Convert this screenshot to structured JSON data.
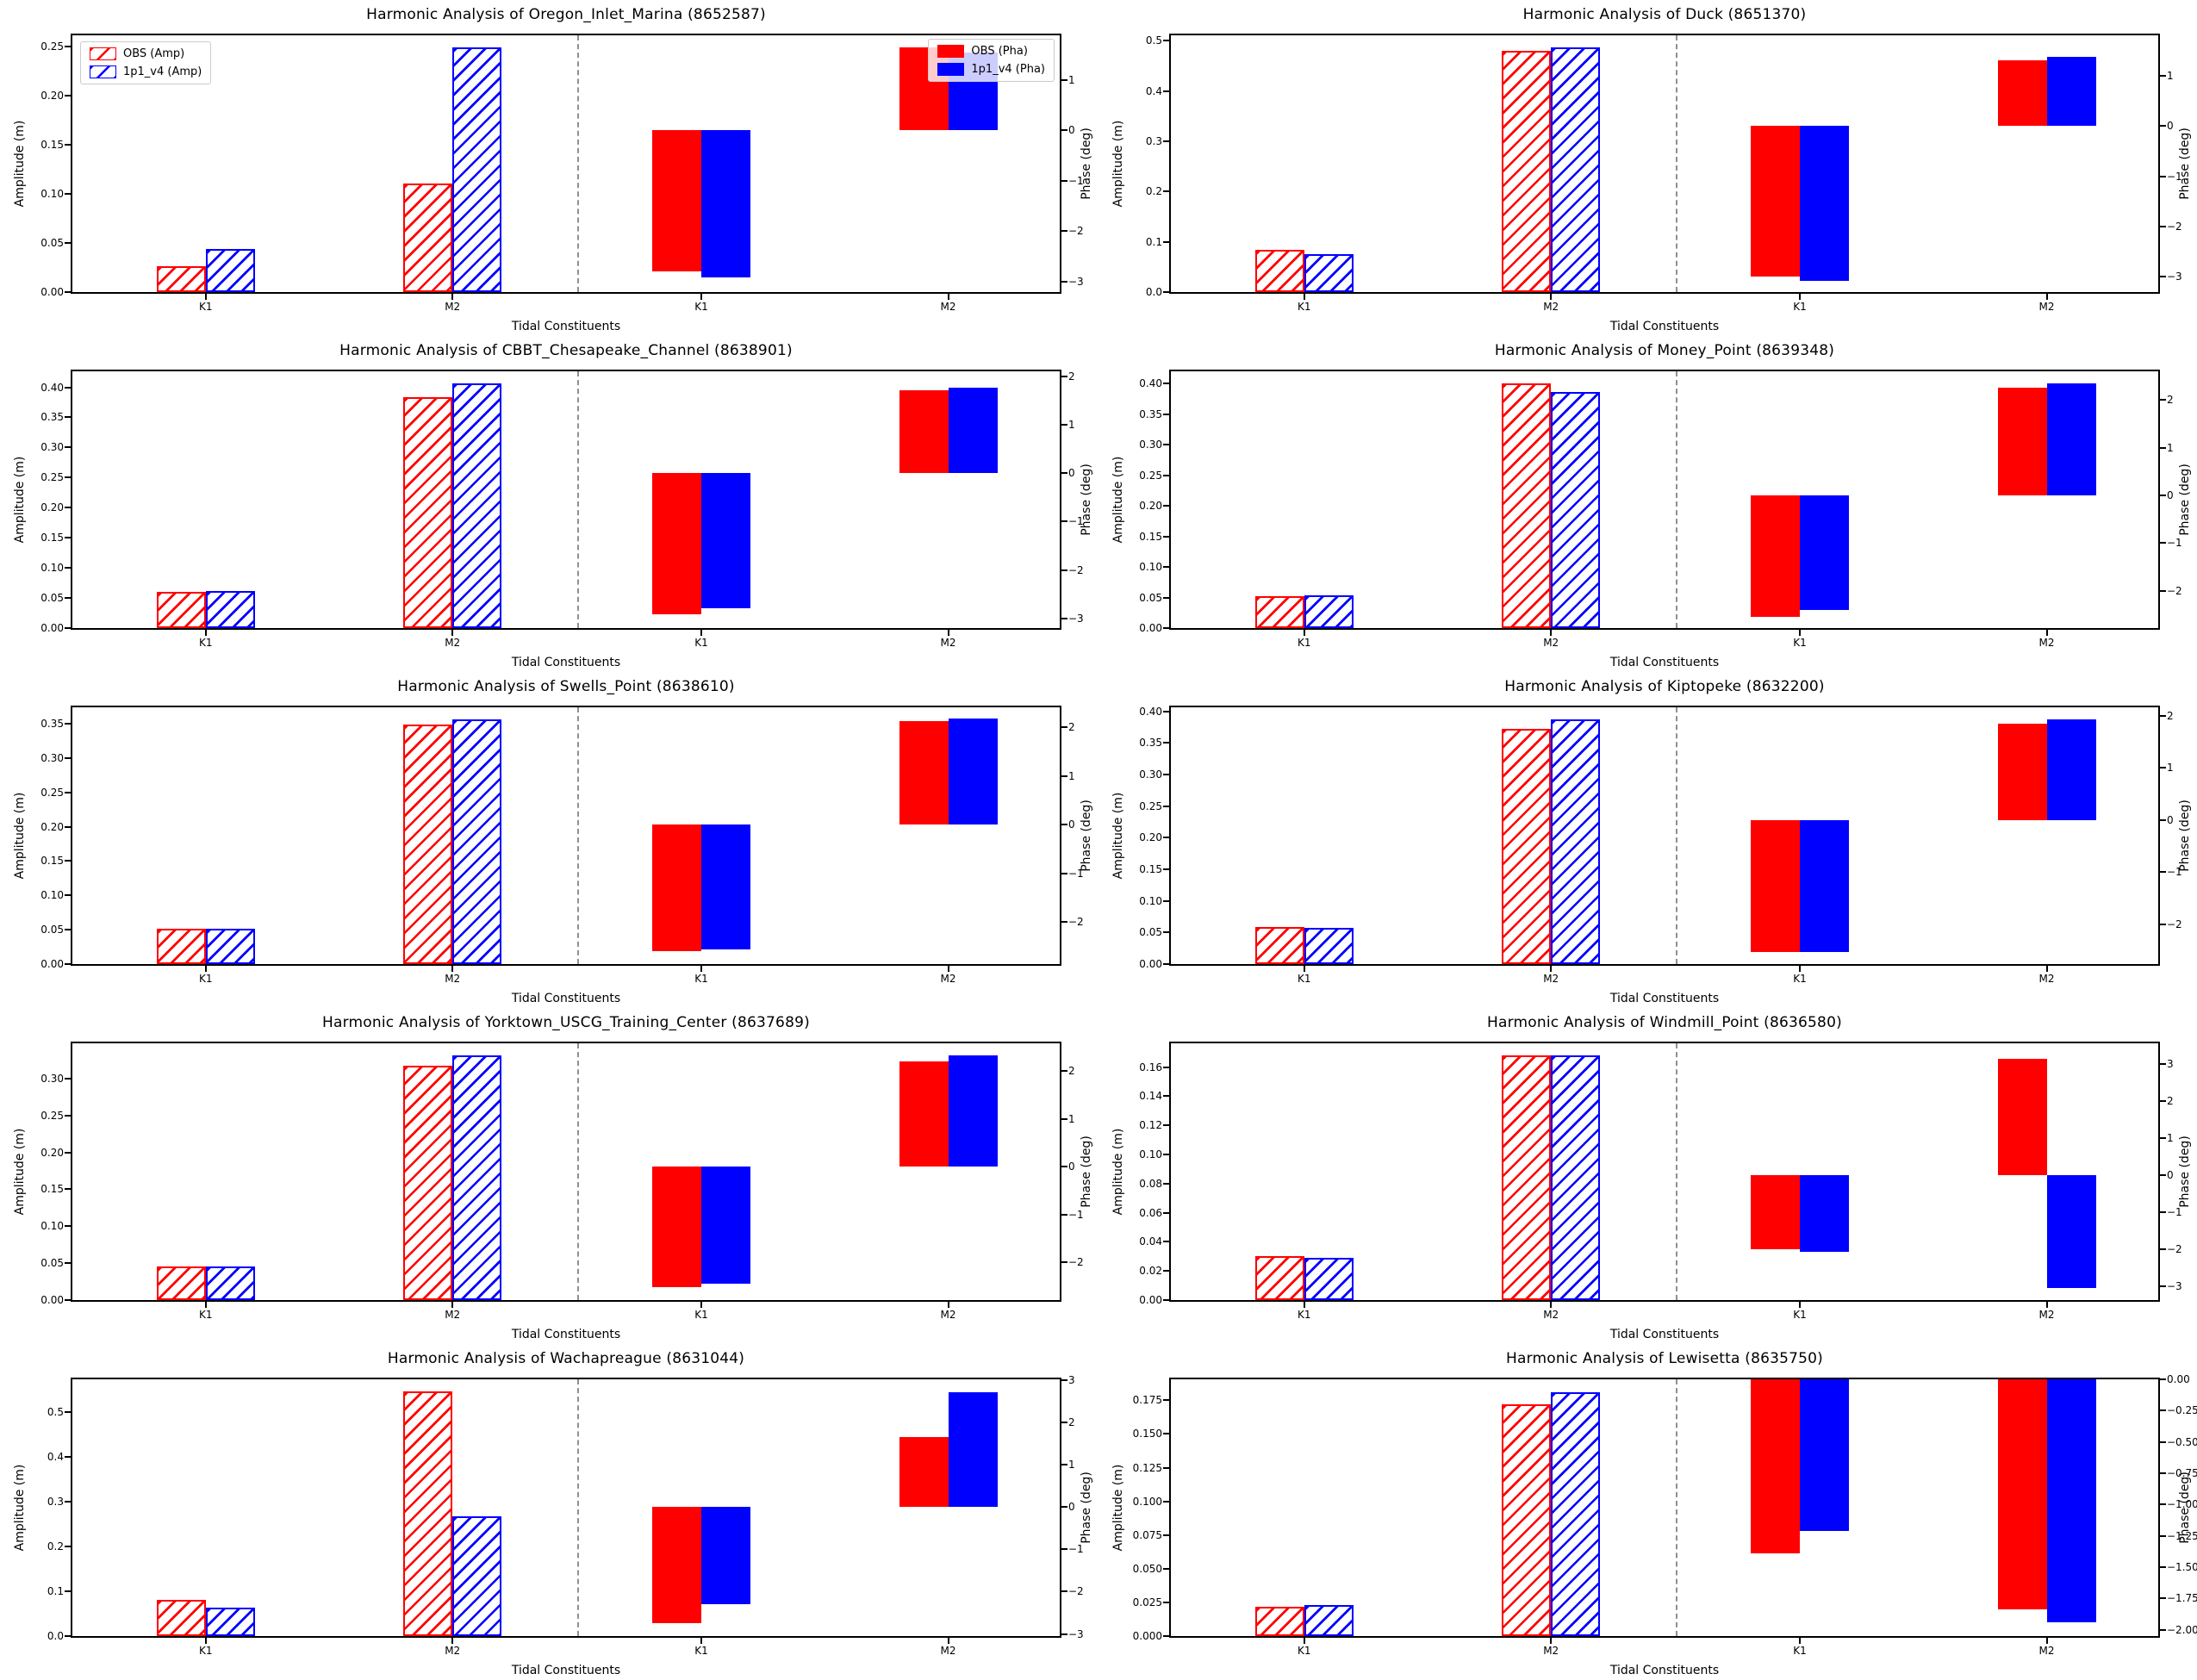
{
  "colors": {
    "obs": "#ff0000",
    "model": "#0000ff",
    "separator": "#8f8f8f",
    "axis": "#000000"
  },
  "legend": {
    "amp_labels": [
      "OBS (Amp)",
      "1p1_v4 (Amp)"
    ],
    "pha_labels": [
      "OBS (Pha)",
      "1p1_v4 (Pha)"
    ]
  },
  "chart_data": [
    {
      "type": "grouped_bar",
      "station": "Oregon_Inlet_Marina",
      "station_id": "8652587",
      "title": "Harmonic Analysis of Oregon_Inlet_Marina (8652587)",
      "xlabel": "Tidal Constituents",
      "ylabel_left": "Amplitude (m)",
      "ylabel_right": "Phase (deg)",
      "has_legend": true,
      "amp": {
        "categories": [
          "K1",
          "M2"
        ],
        "ylim": [
          0,
          0.2615
        ],
        "tick_labels": [
          "0.00",
          "0.05",
          "0.10",
          "0.15",
          "0.20",
          "0.25"
        ],
        "tick_values": [
          0.0,
          0.05,
          0.1,
          0.15,
          0.2,
          0.25
        ],
        "series": [
          {
            "name": "OBS",
            "values": [
              0.026,
              0.111
            ]
          },
          {
            "name": "1p1_v4",
            "values": [
              0.044,
              0.249
            ]
          }
        ]
      },
      "pha": {
        "categories": [
          "K1",
          "M2"
        ],
        "ylim": [
          -3.21,
          1.89
        ],
        "tick_labels": [
          "1",
          "0",
          "−1",
          "−2",
          "−3"
        ],
        "tick_values": [
          1,
          0,
          -1,
          -2,
          -3
        ],
        "series": [
          {
            "name": "OBS",
            "values": [
              -2.8,
              1.65
            ]
          },
          {
            "name": "1p1_v4",
            "values": [
              -2.92,
              1.55
            ]
          }
        ]
      }
    },
    {
      "type": "grouped_bar",
      "station": "Duck",
      "station_id": "8651370",
      "title": "Harmonic Analysis of Duck (8651370)",
      "xlabel": "Tidal Constituents",
      "ylabel_left": "Amplitude (m)",
      "ylabel_right": "Phase (deg)",
      "has_legend": false,
      "amp": {
        "categories": [
          "K1",
          "M2"
        ],
        "ylim": [
          0,
          0.5105
        ],
        "tick_labels": [
          "0.0",
          "0.1",
          "0.2",
          "0.3",
          "0.4",
          "0.5"
        ],
        "tick_values": [
          0.0,
          0.1,
          0.2,
          0.3,
          0.4,
          0.5
        ],
        "series": [
          {
            "name": "OBS",
            "values": [
              0.084,
              0.48
            ]
          },
          {
            "name": "1p1_v4",
            "values": [
              0.075,
              0.486
            ]
          }
        ]
      },
      "pha": {
        "categories": [
          "K1",
          "M2"
        ],
        "ylim": [
          -3.3,
          1.8
        ],
        "tick_labels": [
          "1",
          "0",
          "−1",
          "−2",
          "−3"
        ],
        "tick_values": [
          1,
          0,
          -1,
          -2,
          -3
        ],
        "series": [
          {
            "name": "OBS",
            "values": [
              -3.0,
              1.3
            ]
          },
          {
            "name": "1p1_v4",
            "values": [
              -3.08,
              1.37
            ]
          }
        ]
      }
    },
    {
      "type": "grouped_bar",
      "station": "CBBT_Chesapeake_Channel",
      "station_id": "8638901",
      "title": "Harmonic Analysis of CBBT_Chesapeake_Channel (8638901)",
      "xlabel": "Tidal Constituents",
      "ylabel_left": "Amplitude (m)",
      "ylabel_right": "Phase (deg)",
      "has_legend": false,
      "amp": {
        "categories": [
          "K1",
          "M2"
        ],
        "ylim": [
          0,
          0.4265
        ],
        "tick_labels": [
          "0.00",
          "0.05",
          "0.10",
          "0.15",
          "0.20",
          "0.25",
          "0.30",
          "0.35",
          "0.40"
        ],
        "tick_values": [
          0.0,
          0.05,
          0.1,
          0.15,
          0.2,
          0.25,
          0.3,
          0.35,
          0.4
        ],
        "series": [
          {
            "name": "OBS",
            "values": [
              0.06,
              0.383
            ]
          },
          {
            "name": "1p1_v4",
            "values": [
              0.061,
              0.406
            ]
          }
        ]
      },
      "pha": {
        "categories": [
          "K1",
          "M2"
        ],
        "ylim": [
          -3.2,
          2.1
        ],
        "tick_labels": [
          "2",
          "1",
          "0",
          "−1",
          "−2",
          "−3"
        ],
        "tick_values": [
          2,
          1,
          0,
          -1,
          -2,
          -3
        ],
        "series": [
          {
            "name": "OBS",
            "values": [
              -2.92,
              1.7
            ]
          },
          {
            "name": "1p1_v4",
            "values": [
              -2.8,
              1.77
            ]
          }
        ]
      }
    },
    {
      "type": "grouped_bar",
      "station": "Money_Point",
      "station_id": "8639348",
      "title": "Harmonic Analysis of Money_Point (8639348)",
      "xlabel": "Tidal Constituents",
      "ylabel_left": "Amplitude (m)",
      "ylabel_right": "Phase (deg)",
      "has_legend": false,
      "amp": {
        "categories": [
          "K1",
          "M2"
        ],
        "ylim": [
          0,
          0.42
        ],
        "tick_labels": [
          "0.00",
          "0.05",
          "0.10",
          "0.15",
          "0.20",
          "0.25",
          "0.30",
          "0.35",
          "0.40"
        ],
        "tick_values": [
          0.0,
          0.05,
          0.1,
          0.15,
          0.2,
          0.25,
          0.3,
          0.35,
          0.4
        ],
        "series": [
          {
            "name": "OBS",
            "values": [
              0.052,
              0.4
            ]
          },
          {
            "name": "1p1_v4",
            "values": [
              0.053,
              0.386
            ]
          }
        ]
      },
      "pha": {
        "categories": [
          "K1",
          "M2"
        ],
        "ylim": [
          -2.78,
          2.6
        ],
        "tick_labels": [
          "2",
          "1",
          "0",
          "−1",
          "−2"
        ],
        "tick_values": [
          2,
          1,
          0,
          -1,
          -2
        ],
        "series": [
          {
            "name": "OBS",
            "values": [
              -2.54,
              2.26
            ]
          },
          {
            "name": "1p1_v4",
            "values": [
              -2.41,
              2.34
            ]
          }
        ]
      }
    },
    {
      "type": "grouped_bar",
      "station": "Swells_Point",
      "station_id": "8638610",
      "title": "Harmonic Analysis of Swells_Point (8638610)",
      "xlabel": "Tidal Constituents",
      "ylabel_left": "Amplitude (m)",
      "ylabel_right": "Phase (deg)",
      "has_legend": false,
      "amp": {
        "categories": [
          "K1",
          "M2"
        ],
        "ylim": [
          0,
          0.374
        ],
        "tick_labels": [
          "0.00",
          "0.05",
          "0.10",
          "0.15",
          "0.20",
          "0.25",
          "0.30",
          "0.35"
        ],
        "tick_values": [
          0.0,
          0.05,
          0.1,
          0.15,
          0.2,
          0.25,
          0.3,
          0.35
        ],
        "series": [
          {
            "name": "OBS",
            "values": [
              0.052,
              0.349
            ]
          },
          {
            "name": "1p1_v4",
            "values": [
              0.052,
              0.356
            ]
          }
        ]
      },
      "pha": {
        "categories": [
          "K1",
          "M2"
        ],
        "ylim": [
          -2.86,
          2.41
        ],
        "tick_labels": [
          "2",
          "1",
          "0",
          "−1",
          "−2"
        ],
        "tick_values": [
          2,
          1,
          0,
          -1,
          -2
        ],
        "series": [
          {
            "name": "OBS",
            "values": [
              -2.6,
              2.12
            ]
          },
          {
            "name": "1p1_v4",
            "values": [
              -2.56,
              2.18
            ]
          }
        ]
      }
    },
    {
      "type": "grouped_bar",
      "station": "Kiptopeke",
      "station_id": "8632200",
      "title": "Harmonic Analysis of Kiptopeke (8632200)",
      "xlabel": "Tidal Constituents",
      "ylabel_left": "Amplitude (m)",
      "ylabel_right": "Phase (deg)",
      "has_legend": false,
      "amp": {
        "categories": [
          "K1",
          "M2"
        ],
        "ylim": [
          0,
          0.4065
        ],
        "tick_labels": [
          "0.00",
          "0.05",
          "0.10",
          "0.15",
          "0.20",
          "0.25",
          "0.30",
          "0.35",
          "0.40"
        ],
        "tick_values": [
          0.0,
          0.05,
          0.1,
          0.15,
          0.2,
          0.25,
          0.3,
          0.35,
          0.4
        ],
        "series": [
          {
            "name": "OBS",
            "values": [
              0.058,
              0.373
            ]
          },
          {
            "name": "1p1_v4",
            "values": [
              0.057,
              0.387
            ]
          }
        ]
      },
      "pha": {
        "categories": [
          "K1",
          "M2"
        ],
        "ylim": [
          -2.76,
          2.16
        ],
        "tick_labels": [
          "2",
          "1",
          "0",
          "−1",
          "−2"
        ],
        "tick_values": [
          2,
          1,
          0,
          -1,
          -2
        ],
        "series": [
          {
            "name": "OBS",
            "values": [
              -2.53,
              1.85
            ]
          },
          {
            "name": "1p1_v4",
            "values": [
              -2.53,
              1.93
            ]
          }
        ]
      }
    },
    {
      "type": "grouped_bar",
      "station": "Yorktown_USCG_Training_Center",
      "station_id": "8637689",
      "title": "Harmonic Analysis of Yorktown_USCG_Training_Center (8637689)",
      "xlabel": "Tidal Constituents",
      "ylabel_left": "Amplitude (m)",
      "ylabel_right": "Phase (deg)",
      "has_legend": false,
      "amp": {
        "categories": [
          "K1",
          "M2"
        ],
        "ylim": [
          0,
          0.3476
        ],
        "tick_labels": [
          "0.00",
          "0.05",
          "0.10",
          "0.15",
          "0.20",
          "0.25",
          "0.30"
        ],
        "tick_values": [
          0.0,
          0.05,
          0.1,
          0.15,
          0.2,
          0.25,
          0.3
        ],
        "series": [
          {
            "name": "OBS",
            "values": [
              0.045,
              0.317
            ]
          },
          {
            "name": "1p1_v4",
            "values": [
              0.046,
              0.331
            ]
          }
        ]
      },
      "pha": {
        "categories": [
          "K1",
          "M2"
        ],
        "ylim": [
          -2.79,
          2.58
        ],
        "tick_labels": [
          "2",
          "1",
          "0",
          "−1",
          "−2"
        ],
        "tick_values": [
          2,
          1,
          0,
          -1,
          -2
        ],
        "series": [
          {
            "name": "OBS",
            "values": [
              -2.52,
              2.2
            ]
          },
          {
            "name": "1p1_v4",
            "values": [
              -2.44,
              2.33
            ]
          }
        ]
      }
    },
    {
      "type": "grouped_bar",
      "station": "Windmill_Point",
      "station_id": "8636580",
      "title": "Harmonic Analysis of Windmill_Point (8636580)",
      "xlabel": "Tidal Constituents",
      "ylabel_left": "Amplitude (m)",
      "ylabel_right": "Phase (deg)",
      "has_legend": false,
      "amp": {
        "categories": [
          "K1",
          "M2"
        ],
        "ylim": [
          0,
          0.1764
        ],
        "tick_labels": [
          "0.00",
          "0.02",
          "0.04",
          "0.06",
          "0.08",
          "0.10",
          "0.12",
          "0.14",
          "0.16"
        ],
        "tick_values": [
          0.0,
          0.02,
          0.04,
          0.06,
          0.08,
          0.1,
          0.12,
          0.14,
          0.16
        ],
        "series": [
          {
            "name": "OBS",
            "values": [
              0.03,
              0.168
            ]
          },
          {
            "name": "1p1_v4",
            "values": [
              0.029,
              0.168
            ]
          }
        ]
      },
      "pha": {
        "categories": [
          "K1",
          "M2"
        ],
        "ylim": [
          -3.37,
          3.56
        ],
        "tick_labels": [
          "3",
          "2",
          "1",
          "0",
          "−1",
          "−2",
          "−3"
        ],
        "tick_values": [
          3,
          2,
          1,
          0,
          -1,
          -2,
          -3
        ],
        "series": [
          {
            "name": "OBS",
            "values": [
              -2.0,
              3.15
            ]
          },
          {
            "name": "1p1_v4",
            "values": [
              -2.06,
              -3.05
            ]
          }
        ]
      }
    },
    {
      "type": "grouped_bar",
      "station": "Wachapreague",
      "station_id": "8631044",
      "title": "Harmonic Analysis of Wachapreague (8631044)",
      "xlabel": "Tidal Constituents",
      "ylabel_left": "Amplitude (m)",
      "ylabel_right": "Phase (deg)",
      "has_legend": false,
      "amp": {
        "categories": [
          "K1",
          "M2"
        ],
        "ylim": [
          0,
          0.5723
        ],
        "tick_labels": [
          "0.0",
          "0.1",
          "0.2",
          "0.3",
          "0.4",
          "0.5"
        ],
        "tick_values": [
          0.0,
          0.1,
          0.2,
          0.3,
          0.4,
          0.5
        ],
        "series": [
          {
            "name": "OBS",
            "values": [
              0.081,
              0.545
            ]
          },
          {
            "name": "1p1_v4",
            "values": [
              0.064,
              0.267
            ]
          }
        ]
      },
      "pha": {
        "categories": [
          "K1",
          "M2"
        ],
        "ylim": [
          -3.05,
          3.02
        ],
        "tick_labels": [
          "3",
          "2",
          "1",
          "0",
          "−1",
          "−2",
          "−3"
        ],
        "tick_values": [
          3,
          2,
          1,
          0,
          -1,
          -2,
          -3
        ],
        "series": [
          {
            "name": "OBS",
            "values": [
              -2.74,
              1.66
            ]
          },
          {
            "name": "1p1_v4",
            "values": [
              -2.3,
              2.72
            ]
          }
        ]
      }
    },
    {
      "type": "grouped_bar",
      "station": "Lewisetta",
      "station_id": "8635750",
      "title": "Harmonic Analysis of Lewisetta (8635750)",
      "xlabel": "Tidal Constituents",
      "ylabel_left": "Amplitude (m)",
      "ylabel_right": "Phase (deg)",
      "has_legend": false,
      "amp": {
        "categories": [
          "K1",
          "M2"
        ],
        "ylim": [
          0,
          0.1906
        ],
        "tick_labels": [
          "0.000",
          "0.025",
          "0.050",
          "0.075",
          "0.100",
          "0.125",
          "0.150",
          "0.175"
        ],
        "tick_values": [
          0.0,
          0.025,
          0.05,
          0.075,
          0.1,
          0.125,
          0.15,
          0.175
        ],
        "series": [
          {
            "name": "OBS",
            "values": [
              0.022,
              0.172
            ]
          },
          {
            "name": "1p1_v4",
            "values": [
              0.023,
              0.181
            ]
          }
        ]
      },
      "pha": {
        "categories": [
          "K1",
          "M2"
        ],
        "ylim": [
          -2.05,
          0.0
        ],
        "tick_labels": [
          "0.00",
          "−0.25",
          "−0.50",
          "−0.75",
          "−1.00",
          "−1.25",
          "−1.50",
          "−1.75",
          "−2.00"
        ],
        "tick_values": [
          0.0,
          -0.25,
          -0.5,
          -0.75,
          -1.0,
          -1.25,
          -1.5,
          -1.75,
          -2.0
        ],
        "series": [
          {
            "name": "OBS",
            "values": [
              -1.39,
              -1.84
            ]
          },
          {
            "name": "1p1_v4",
            "values": [
              -1.21,
              -1.94
            ]
          }
        ]
      }
    }
  ]
}
